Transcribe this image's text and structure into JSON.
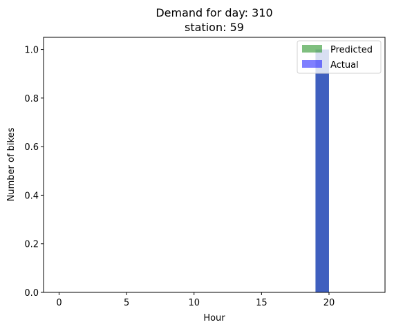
{
  "chart_data": {
    "type": "bar",
    "title_line1": "Demand for day: 310",
    "title_line2": "station: 59",
    "xlabel": "Hour",
    "ylabel": "Number of bikes",
    "xlim": [
      -1.15,
      24.15
    ],
    "ylim": [
      0,
      1.05
    ],
    "xticks": [
      0,
      5,
      10,
      15,
      20
    ],
    "yticks": [
      0.0,
      0.2,
      0.4,
      0.6,
      0.8,
      1.0
    ],
    "xtick_labels": [
      "0",
      "5",
      "10",
      "15",
      "20"
    ],
    "ytick_labels": [
      "0.0",
      "0.2",
      "0.4",
      "0.6",
      "0.8",
      "1.0"
    ],
    "bar_width": 1,
    "series": [
      {
        "name": "Predicted",
        "color": "#008000",
        "alpha": 0.5,
        "bars": [
          {
            "x": 19,
            "value": 1
          }
        ]
      },
      {
        "name": "Actual",
        "color": "#0000ff",
        "alpha": 0.5,
        "bars": [
          {
            "x": 19,
            "value": 1
          }
        ]
      }
    ],
    "legend_position": "top-right",
    "grid": false
  }
}
